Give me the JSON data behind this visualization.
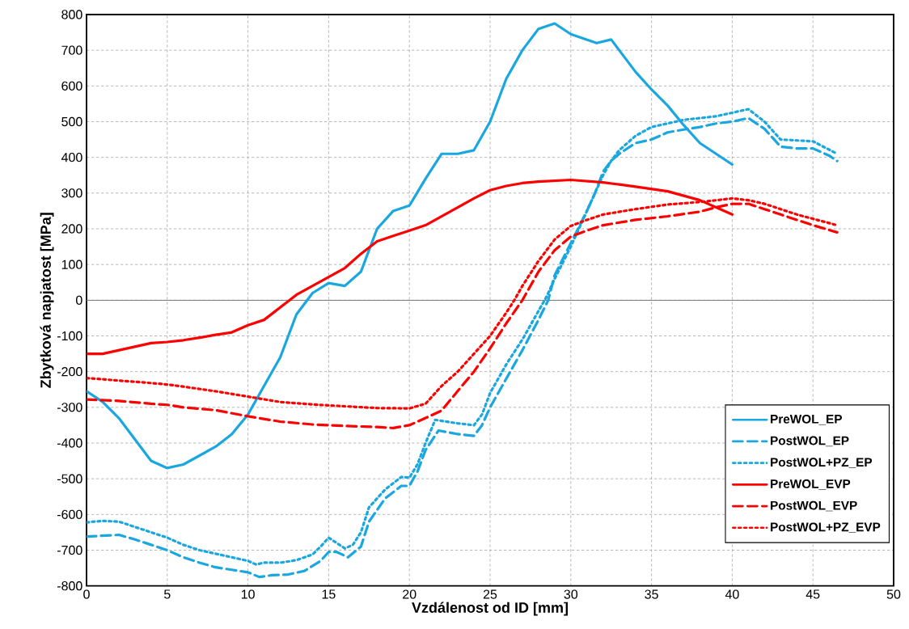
{
  "chart_data": {
    "type": "line",
    "xlabel": "Vzdálenost od ID [mm]",
    "ylabel": "Zbytková napjatost [MPa]",
    "xlim": [
      0,
      50
    ],
    "xticks": [
      0,
      5,
      10,
      15,
      20,
      25,
      30,
      35,
      40,
      45,
      50
    ],
    "ylim": [
      -800,
      800
    ],
    "yticks": [
      -800,
      -700,
      -600,
      -500,
      -400,
      -300,
      -200,
      -100,
      0,
      100,
      200,
      300,
      400,
      500,
      600,
      700,
      800
    ],
    "grid": true,
    "legend": "bottom right",
    "marker": "none",
    "ref_lines": [
      {
        "axis": "y",
        "value": 0,
        "color": "#808080"
      }
    ],
    "series": [
      {
        "name": "PreWOL_EP",
        "color": "#1aa7e0",
        "line_style": "solid",
        "x": [
          0,
          1,
          2,
          3,
          4,
          5,
          6,
          7,
          8,
          9,
          10,
          11,
          12,
          13,
          14,
          15,
          16,
          17,
          18,
          19,
          20,
          21,
          22,
          23,
          24,
          25,
          26,
          27,
          28,
          29,
          30,
          31.6,
          32.5,
          33,
          34,
          35,
          36,
          37,
          38,
          39,
          40
        ],
        "values": [
          -255,
          -285,
          -330,
          -390,
          -450,
          -470,
          -460,
          -435,
          -410,
          -375,
          -320,
          -240,
          -160,
          -40,
          20,
          48,
          40,
          80,
          200,
          250,
          265,
          340,
          410,
          410,
          420,
          500,
          620,
          700,
          760,
          775,
          745,
          720,
          730,
          700,
          640,
          590,
          545,
          490,
          440,
          410,
          380
        ]
      },
      {
        "name": "PostWOL_EP",
        "color": "#1aa7e0",
        "line_style": "dashed",
        "x": [
          0,
          2,
          3,
          4,
          5,
          6,
          7,
          8,
          9,
          10,
          10.7,
          11.5,
          12.5,
          13.5,
          14.5,
          15,
          15.5,
          16.2,
          17,
          17.5,
          18.5,
          19.5,
          20,
          20.5,
          21,
          21.8,
          23,
          24,
          24.5,
          25,
          26,
          27,
          28,
          28.6,
          29,
          30,
          31,
          31.5,
          32,
          32.5,
          33,
          34,
          35,
          36,
          37,
          38,
          39,
          40,
          41,
          42,
          43,
          44,
          45,
          46,
          46.5
        ],
        "values": [
          -662,
          -657,
          -670,
          -685,
          -700,
          -720,
          -735,
          -748,
          -755,
          -762,
          -775,
          -770,
          -768,
          -758,
          -730,
          -705,
          -705,
          -720,
          -690,
          -620,
          -555,
          -520,
          -520,
          -480,
          -420,
          -365,
          -375,
          -380,
          -350,
          -300,
          -220,
          -140,
          -55,
          0,
          70,
          160,
          250,
          300,
          360,
          390,
          410,
          440,
          450,
          470,
          478,
          485,
          495,
          500,
          510,
          480,
          430,
          425,
          425,
          405,
          390
        ]
      },
      {
        "name": "PostWOL+PZ_EP",
        "color": "#1aa7e0",
        "line_style": "dotted",
        "x": [
          0,
          1,
          2,
          3,
          4,
          5,
          6,
          7,
          8,
          9,
          10,
          10.5,
          11,
          12,
          13,
          14,
          14.5,
          15,
          15.5,
          16,
          16.5,
          17,
          17.5,
          18.5,
          19.5,
          20,
          20.5,
          21,
          21.6,
          23,
          24,
          24.5,
          25,
          26,
          27,
          28,
          28.5,
          29,
          30,
          31,
          32,
          32.5,
          33,
          34,
          35,
          36,
          37,
          38,
          39,
          40,
          41,
          42,
          43,
          45,
          46.5
        ],
        "values": [
          -622,
          -618,
          -620,
          -635,
          -650,
          -665,
          -685,
          -700,
          -710,
          -720,
          -730,
          -740,
          -735,
          -735,
          -728,
          -712,
          -690,
          -665,
          -680,
          -695,
          -685,
          -650,
          -580,
          -530,
          -495,
          -497,
          -460,
          -400,
          -335,
          -345,
          -350,
          -320,
          -260,
          -180,
          -110,
          -30,
          10,
          60,
          150,
          250,
          350,
          390,
          420,
          460,
          485,
          495,
          505,
          510,
          515,
          525,
          535,
          500,
          450,
          445,
          410
        ]
      },
      {
        "name": "PreWOL_EVP",
        "color": "#ff0000",
        "line_style": "solid",
        "x": [
          0,
          1,
          2,
          3,
          4,
          5,
          6,
          7,
          8,
          9,
          10,
          11,
          12,
          13,
          14,
          15,
          16,
          17,
          18,
          19,
          20,
          21,
          22,
          23,
          24,
          25,
          26,
          27,
          28,
          30,
          32,
          34,
          36,
          38,
          39,
          40
        ],
        "values": [
          -150,
          -150,
          -140,
          -130,
          -120,
          -117,
          -112,
          -105,
          -97,
          -90,
          -70,
          -55,
          -20,
          15,
          40,
          65,
          90,
          130,
          165,
          180,
          195,
          210,
          235,
          260,
          285,
          308,
          320,
          328,
          332,
          337,
          330,
          318,
          305,
          280,
          260,
          240
        ]
      },
      {
        "name": "PostWOL_EVP",
        "color": "#ff0000",
        "line_style": "dashed",
        "x": [
          0,
          2,
          4,
          5,
          6,
          8,
          10,
          12,
          14,
          16,
          18,
          19,
          20,
          21,
          22,
          23,
          24,
          25,
          26,
          27,
          28,
          29,
          30,
          31,
          32,
          34,
          36,
          38,
          39,
          40,
          41,
          42,
          43,
          45,
          46.5
        ],
        "values": [
          -278,
          -282,
          -290,
          -293,
          -300,
          -308,
          -325,
          -340,
          -348,
          -352,
          -355,
          -358,
          -350,
          -330,
          -309,
          -254,
          -200,
          -135,
          -65,
          0,
          80,
          140,
          178,
          195,
          210,
          225,
          235,
          248,
          260,
          270,
          270,
          255,
          240,
          210,
          190
        ]
      },
      {
        "name": "PostWOL+PZ_EVP",
        "color": "#ff0000",
        "line_style": "dotted",
        "x": [
          0,
          2,
          4,
          5,
          6,
          8,
          10,
          12,
          14,
          16,
          18,
          20,
          21,
          22,
          23,
          24,
          25,
          26,
          26.5,
          27,
          28,
          29,
          30,
          31,
          32,
          34,
          36,
          38,
          40,
          41,
          42,
          44,
          46.5
        ],
        "values": [
          -218,
          -225,
          -232,
          -236,
          -242,
          -255,
          -270,
          -285,
          -292,
          -297,
          -302,
          -303,
          -290,
          -240,
          -200,
          -150,
          -100,
          -35,
          0,
          40,
          110,
          170,
          208,
          225,
          240,
          255,
          268,
          275,
          285,
          280,
          270,
          240,
          210
        ]
      }
    ]
  }
}
